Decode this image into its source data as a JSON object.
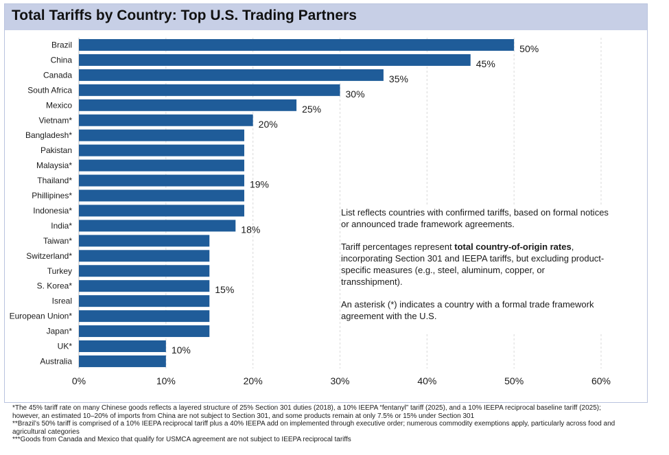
{
  "title": "Total Tariffs by Country: Top U.S. Trading Partners",
  "chart_data": {
    "type": "bar",
    "orientation": "horizontal",
    "title": "Total Tariffs by Country: Top U.S. Trading Partners",
    "xlabel": "",
    "ylabel": "",
    "xlim": [
      0,
      60
    ],
    "x_ticks": [
      0,
      10,
      20,
      30,
      40,
      50,
      60
    ],
    "x_tick_labels": [
      "0%",
      "10%",
      "20%",
      "30%",
      "40%",
      "50%",
      "60%"
    ],
    "grid": "vertical dashed",
    "bar_color": "#1f5c99",
    "categories": [
      "Brazil",
      "China",
      "Canada",
      "South Africa",
      "Mexico",
      "Vietnam*",
      "Bangladesh*",
      "Pakistan",
      "Malaysia*",
      "Thailand*",
      "Phillipines*",
      "Indonesia*",
      "India*",
      "Taiwan*",
      "Switzerland*",
      "Turkey",
      "S. Korea*",
      "Isreal",
      "European Union*",
      "Japan*",
      "UK*",
      "Australia"
    ],
    "values": [
      50,
      45,
      35,
      30,
      25,
      20,
      19,
      19,
      19,
      19,
      19,
      19,
      18,
      15,
      15,
      15,
      15,
      15,
      15,
      15,
      10,
      10
    ],
    "data_labels": [
      "50%",
      "45%",
      "35%",
      "30%",
      "25%",
      "20%",
      "",
      "",
      "",
      "19%",
      "",
      "",
      "18%",
      "",
      "",
      "",
      "15%",
      "",
      "",
      "",
      "10%",
      ""
    ]
  },
  "notes": {
    "p1": "List reflects countries with confirmed tariffs, based on formal notices or announced trade framework agreements.",
    "p2_before": "Tariff percentages represent ",
    "p2_bold": "total country-of-origin rates",
    "p2_after": ", incorporating Section 301 and IEEPA tariffs, but excluding product-specific measures (e.g., steel, aluminum, copper, or transshipment).",
    "p3": "An asterisk (*) indicates a country with a formal trade framework agreement with the U.S."
  },
  "footnotes": {
    "f1": "*The 45% tariff rate on many Chinese goods reflects a layered structure of 25% Section 301 duties (2018), a 10% IEEPA “fentanyl” tariff (2025), and a 10% IEEPA reciprocal baseline tariff (2025); however, an estimated 10–20% of imports from China are not subject to Section 301, and some products remain at only 7.5% or 15% under Section 301",
    "f2": "**Brazil’s 50% tariff is comprised of a 10% IEEPA reciprocal tariff plus a 40% IEEPA add on implemented through executive order; numerous commodity exemptions apply, particularly across food and agricultural categories",
    "f3": "***Goods from Canada and Mexico that qualify for USMCA agreement are not subject to IEEPA reciprocal tariffs"
  }
}
